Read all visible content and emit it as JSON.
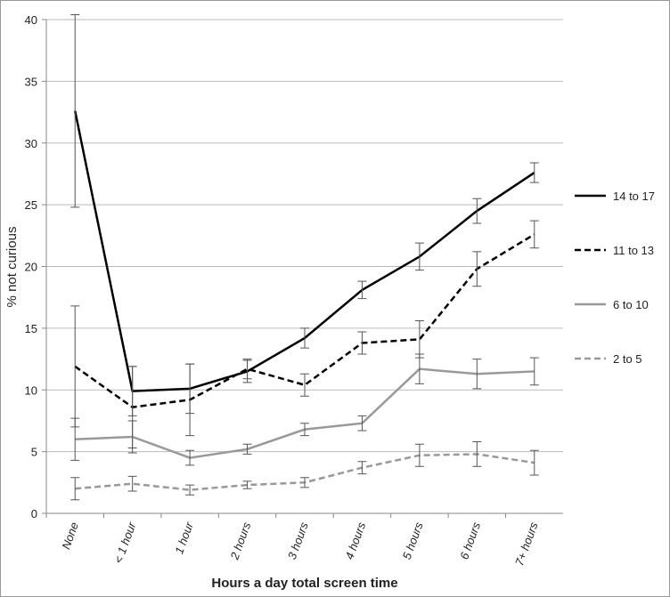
{
  "chart_data": {
    "type": "line",
    "x_label": "Hours a day total screen time",
    "y_label": "% not curious",
    "categories": [
      "None",
      "< 1 hour",
      "1 hour",
      "2 hours",
      "3 hours",
      "4 hours",
      "5 hours",
      "6 hours",
      "7+ hours"
    ],
    "series": [
      {
        "name": "14 to 17",
        "color": "#000000",
        "dashed": false,
        "values": [
          32.6,
          9.9,
          10.1,
          11.5,
          14.2,
          18.1,
          20.8,
          24.5,
          27.6
        ],
        "errors": [
          7.8,
          2.0,
          2.0,
          0.9,
          0.8,
          0.7,
          1.1,
          1.0,
          0.8
        ]
      },
      {
        "name": "11 to 13",
        "color": "#000000",
        "dashed": true,
        "values": [
          11.9,
          8.6,
          9.2,
          11.7,
          10.4,
          13.8,
          14.1,
          19.8,
          22.6
        ],
        "errors": [
          4.9,
          3.3,
          2.9,
          0.8,
          0.9,
          0.9,
          1.5,
          1.4,
          1.1
        ]
      },
      {
        "name": "6 to 10",
        "color": "#999999",
        "dashed": false,
        "values": [
          6.0,
          6.2,
          4.5,
          5.2,
          6.8,
          7.3,
          11.7,
          11.3,
          11.5
        ],
        "errors": [
          1.7,
          1.3,
          0.6,
          0.4,
          0.5,
          0.6,
          1.2,
          1.2,
          1.1
        ]
      },
      {
        "name": "2 to 5",
        "color": "#999999",
        "dashed": true,
        "values": [
          2.0,
          2.4,
          1.9,
          2.3,
          2.5,
          3.7,
          4.7,
          4.8,
          4.1
        ],
        "errors": [
          0.9,
          0.6,
          0.4,
          0.3,
          0.4,
          0.5,
          0.9,
          1.0,
          1.0
        ]
      }
    ],
    "ylim": [
      0,
      40
    ],
    "yticks": [
      0,
      5,
      10,
      15,
      20,
      25,
      30,
      35,
      40
    ],
    "grid": true,
    "legend": "right"
  }
}
